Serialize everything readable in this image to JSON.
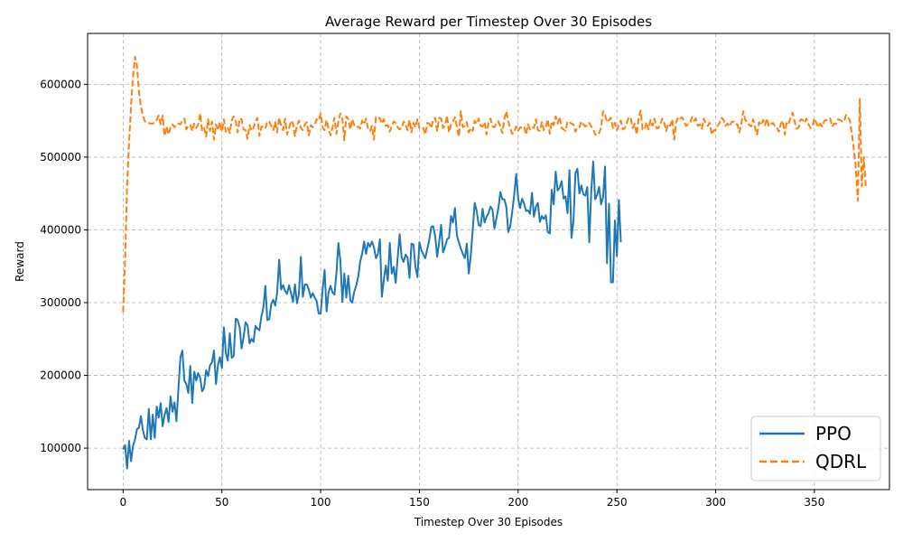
{
  "chart_data": {
    "type": "line",
    "title": "Average Reward per Timestep Over 30 Episodes",
    "xlabel": "Timestep Over 30 Episodes",
    "ylabel": "Reward",
    "xlim": [
      -18,
      388
    ],
    "ylim": [
      43000,
      670000
    ],
    "xticks": [
      0,
      50,
      100,
      150,
      200,
      250,
      300,
      350
    ],
    "yticks": [
      100000,
      200000,
      300000,
      400000,
      500000,
      600000
    ],
    "grid": true,
    "legend": "bottom-right",
    "series": [
      {
        "name": "PPO",
        "color": "#1f77b4",
        "style": "solid",
        "x_start": 0,
        "values": [
          98000,
          104000,
          72000,
          110000,
          82000,
          103000,
          112000,
          126000,
          128000,
          144000,
          125000,
          114000,
          112000,
          154000,
          112000,
          146000,
          114000,
          157000,
          142000,
          162000,
          130000,
          146000,
          155000,
          136000,
          171000,
          150000,
          163000,
          137000,
          182000,
          225000,
          234000,
          193000,
          188000,
          176000,
          213000,
          162000,
          205000,
          193000,
          203000,
          197000,
          178000,
          183000,
          207000,
          199000,
          214000,
          218000,
          234000,
          188000,
          214000,
          225000,
          210000,
          266000,
          231000,
          220000,
          258000,
          224000,
          227000,
          278000,
          276000,
          266000,
          237000,
          253000,
          273000,
          269000,
          244000,
          250000,
          246000,
          268000,
          264000,
          262000,
          281000,
          293000,
          323000,
          276000,
          277000,
          298000,
          304000,
          296000,
          314000,
          359000,
          318000,
          324000,
          316000,
          312000,
          324000,
          313000,
          301000,
          325000,
          299000,
          312000,
          363000,
          308000,
          325000,
          325000,
          318000,
          307000,
          313000,
          307000,
          302000,
          285000,
          285000,
          318000,
          345000,
          288000,
          314000,
          323000,
          314000,
          311000,
          341000,
          382000,
          357000,
          301000,
          340000,
          307000,
          337000,
          303000,
          300000,
          315000,
          323000,
          335000,
          356000,
          367000,
          384000,
          367000,
          382000,
          377000,
          384000,
          376000,
          361000,
          367000,
          387000,
          308000,
          332000,
          351000,
          330000,
          382000,
          340000,
          349000,
          327000,
          362000,
          394000,
          362000,
          356000,
          366000,
          362000,
          334000,
          381000,
          380000,
          349000,
          335000,
          383000,
          372000,
          366000,
          361000,
          374000,
          386000,
          404000,
          405000,
          391000,
          363000,
          383000,
          407000,
          369000,
          377000,
          387000,
          389000,
          419000,
          410000,
          430000,
          392000,
          383000,
          374000,
          367000,
          361000,
          381000,
          340000,
          365000,
          400000,
          437000,
          426000,
          407000,
          405000,
          429000,
          410000,
          418000,
          423000,
          432000,
          428000,
          402000,
          416000,
          430000,
          452000,
          442000,
          442000,
          432000,
          397000,
          405000,
          425000,
          448000,
          477000,
          443000,
          430000,
          443000,
          436000,
          426000,
          427000,
          422000,
          451000,
          418000,
          432000,
          437000,
          411000,
          419000,
          415000,
          420000,
          397000,
          395000,
          455000,
          435000,
          480000,
          454000,
          458000,
          467000,
          443000,
          446000,
          423000,
          482000,
          389000,
          412000,
          478000,
          484000,
          450000,
          461000,
          449000,
          447000,
          459000,
          383000,
          452000,
          494000,
          442000,
          448000,
          459000,
          435000,
          445000,
          487000,
          354000,
          436000,
          328000,
          328000,
          413000,
          364000,
          441000,
          383000
        ]
      },
      {
        "name": "QDRL",
        "color": "#ff7f0e",
        "style": "dashed",
        "x_start": 0,
        "values": [
          287000,
          360000,
          460000,
          520000,
          570000,
          610000,
          638000,
          625000,
          590000,
          570000,
          557000,
          549000,
          548000,
          547000,
          546000,
          546000,
          548000,
          551000,
          557000,
          545000,
          557000,
          529000,
          542000,
          531000,
          541000,
          545000,
          541000,
          545000,
          546000,
          545000,
          550000,
          553000,
          538000,
          543000,
          544000,
          536000,
          546000,
          540000,
          545000,
          560000,
          536000,
          540000,
          528000,
          552000,
          536000,
          549000,
          524000,
          545000,
          537000,
          548000,
          535000,
          552000,
          535000,
          540000,
          533000,
          551000,
          556000,
          549000,
          534000,
          553000,
          552000,
          538000,
          537000,
          525000,
          544000,
          536000,
          540000,
          549000,
          554000,
          529000,
          542000,
          541000,
          539000,
          549000,
          549000,
          543000,
          537000,
          548000,
          534000,
          554000,
          543000,
          537000,
          553000,
          531000,
          540000,
          550000,
          546000,
          529000,
          544000,
          550000,
          540000,
          537000,
          545000,
          548000,
          530000,
          544000,
          541000,
          545000,
          552000,
          550000,
          560000,
          541000,
          537000,
          551000,
          539000,
          530000,
          541000,
          554000,
          532000,
          549000,
          560000,
          553000,
          523000,
          556000,
          552000,
          538000,
          552000,
          544000,
          541000,
          542000,
          539000,
          550000,
          545000,
          553000,
          539000,
          536000,
          543000,
          524000,
          555000,
          553000,
          554000,
          546000,
          552000,
          543000,
          544000,
          535000,
          543000,
          549000,
          547000,
          541000,
          538000,
          540000,
          549000,
          545000,
          537000,
          551000,
          534000,
          547000,
          541000,
          552000,
          540000,
          539000,
          540000,
          531000,
          547000,
          546000,
          540000,
          552000,
          554000,
          536000,
          554000,
          553000,
          540000,
          543000,
          557000,
          534000,
          545000,
          549000,
          555000,
          541000,
          528000,
          563000,
          541000,
          543000,
          548000,
          534000,
          540000,
          536000,
          550000,
          546000,
          553000,
          543000,
          542000,
          548000,
          531000,
          547000,
          553000,
          542000,
          541000,
          547000,
          549000,
          542000,
          533000,
          552000,
          563000,
          549000,
          539000,
          532000,
          534000,
          542000,
          536000,
          541000,
          540000,
          542000,
          531000,
          545000,
          538000,
          541000,
          540000,
          552000,
          537000,
          536000,
          548000,
          537000,
          541000,
          552000,
          532000,
          549000,
          544000,
          556000,
          546000,
          555000,
          540000,
          538000,
          536000,
          549000,
          548000,
          546000,
          545000,
          535000,
          541000,
          541000,
          549000,
          545000,
          542000,
          544000,
          547000,
          542000,
          539000,
          531000,
          530000,
          533000,
          541000,
          563000,
          558000,
          548000,
          551000,
          554000,
          540000,
          547000,
          537000,
          545000,
          550000,
          538000,
          540000,
          547000,
          555000,
          553000,
          540000,
          546000,
          531000,
          553000,
          564000,
          538000,
          538000,
          548000,
          538000,
          551000,
          543000,
          553000,
          540000,
          540000,
          545000,
          553000,
          547000,
          536000,
          546000,
          543000,
          552000,
          524000,
          547000,
          555000,
          553000,
          555000,
          549000,
          543000,
          545000,
          546000,
          555000,
          550000,
          553000,
          543000,
          545000,
          539000,
          553000,
          546000,
          543000,
          547000,
          531000,
          537000,
          537000,
          543000,
          547000,
          554000,
          551000,
          543000,
          546000,
          542000,
          548000,
          549000,
          545000,
          545000,
          534000,
          546000,
          563000,
          551000,
          549000,
          544000,
          542000,
          552000,
          540000,
          531000,
          548000,
          544000,
          551000,
          544000,
          553000,
          542000,
          545000,
          547000,
          543000,
          541000,
          535000,
          546000,
          550000,
          531000,
          549000,
          547000,
          554000,
          561000,
          549000,
          539000,
          541000,
          552000,
          551000,
          547000,
          553000,
          545000,
          540000,
          542000,
          553000,
          547000,
          541000,
          546000,
          542000,
          550000,
          551000,
          551000,
          553000,
          542000,
          546000,
          546000,
          552000,
          551000,
          549000,
          549000,
          558000,
          555000,
          550000,
          531000,
          510000,
          485000,
          440000,
          580000,
          460000,
          500000,
          460000
        ]
      }
    ]
  }
}
